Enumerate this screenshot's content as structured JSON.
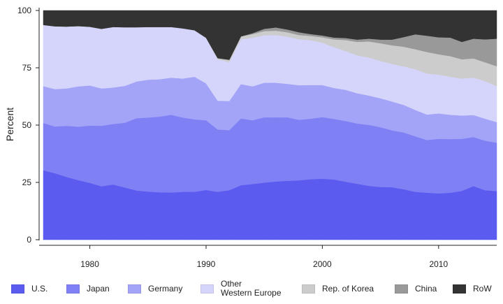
{
  "chart_data": {
    "type": "area",
    "stacked": true,
    "title": "",
    "xlabel": "",
    "ylabel": "Percent",
    "xlim": [
      1976,
      2015
    ],
    "ylim": [
      0,
      100
    ],
    "xticks": [
      "1980",
      "1990",
      "2000",
      "2010"
    ],
    "yticks": [
      "0",
      "25",
      "50",
      "75",
      "100"
    ],
    "grid": false,
    "legend_position": "bottom",
    "x": [
      1976,
      1977,
      1978,
      1979,
      1980,
      1981,
      1982,
      1983,
      1984,
      1985,
      1986,
      1987,
      1988,
      1989,
      1990,
      1991,
      1992,
      1993,
      1994,
      1995,
      1996,
      1997,
      1998,
      1999,
      2000,
      2001,
      2002,
      2003,
      2004,
      2005,
      2006,
      2007,
      2008,
      2009,
      2010,
      2011,
      2012,
      2013,
      2014,
      2015
    ],
    "series": [
      {
        "name": "U.S.",
        "color": "#5b5bf0",
        "values": [
          30.3,
          29.0,
          27.4,
          26.0,
          24.8,
          23.3,
          24.1,
          22.8,
          21.5,
          21.0,
          20.7,
          20.6,
          20.9,
          20.9,
          21.7,
          20.9,
          21.6,
          23.8,
          24.3,
          24.9,
          25.4,
          25.7,
          25.9,
          26.4,
          26.6,
          26.3,
          25.3,
          24.4,
          23.5,
          23.0,
          22.9,
          22.0,
          20.9,
          20.5,
          20.2,
          20.5,
          21.3,
          23.4,
          21.6,
          21.2
        ]
      },
      {
        "name": "Japan",
        "color": "#8080f5",
        "values": [
          20.6,
          20.4,
          22.3,
          23.3,
          25.0,
          26.4,
          26.4,
          28.2,
          31.5,
          32.3,
          33.0,
          33.9,
          32.4,
          31.6,
          30.4,
          27.2,
          26.2,
          29.1,
          27.8,
          28.5,
          28.0,
          27.7,
          26.4,
          26.4,
          26.9,
          26.4,
          26.5,
          26.3,
          26.6,
          26.1,
          24.8,
          24.8,
          24.2,
          23.0,
          23.8,
          23.4,
          22.7,
          21.4,
          21.6,
          21.1
        ]
      },
      {
        "name": "Germany",
        "color": "#a3a3f7",
        "values": [
          16.1,
          16.3,
          16.3,
          17.6,
          17.5,
          16.3,
          15.9,
          16.1,
          16.0,
          16.5,
          16.3,
          16.2,
          17.0,
          18.6,
          16.1,
          12.5,
          12.7,
          15.0,
          14.8,
          15.1,
          15.1,
          14.6,
          15.1,
          14.7,
          14.0,
          13.5,
          13.6,
          13.2,
          12.8,
          12.6,
          12.6,
          12.0,
          11.5,
          11.1,
          11.1,
          10.6,
          10.2,
          9.6,
          9.6,
          9.0
        ]
      },
      {
        "name": "Other\nWestern Europe",
        "color": "#d5d5fb",
        "values": [
          26.7,
          27.4,
          27.0,
          26.3,
          25.6,
          26.0,
          26.4,
          25.6,
          23.7,
          23.0,
          22.8,
          22.1,
          21.9,
          20.3,
          19.8,
          18.1,
          17.0,
          19.6,
          21.2,
          20.7,
          20.8,
          20.6,
          20.1,
          19.5,
          18.5,
          17.8,
          16.9,
          16.5,
          16.6,
          16.3,
          16.4,
          16.8,
          17.8,
          17.9,
          16.9,
          16.6,
          16.1,
          16.3,
          16.4,
          15.7
        ]
      },
      {
        "name": "Rep. of Korea",
        "color": "#cccccc",
        "values": [
          0,
          0,
          0,
          0,
          0,
          0,
          0,
          0,
          0,
          0,
          0,
          0,
          0,
          0,
          0.1,
          0.5,
          1.0,
          1.2,
          1.6,
          1.8,
          1.9,
          1.9,
          1.8,
          1.9,
          2.3,
          3.4,
          4.8,
          5.9,
          7.0,
          7.7,
          8.1,
          8.6,
          8.7,
          9.4,
          8.9,
          9.0,
          8.4,
          8.4,
          8.2,
          8.7
        ]
      },
      {
        "name": "China",
        "color": "#999999",
        "values": [
          0,
          0,
          0,
          0,
          0,
          0,
          0,
          0,
          0,
          0,
          0,
          0,
          0,
          0,
          0,
          0,
          0,
          0,
          0.4,
          1.0,
          1.4,
          1.2,
          1.2,
          0.8,
          0.8,
          0.8,
          0.9,
          1.0,
          1.2,
          1.6,
          2.5,
          4.2,
          6.5,
          7.1,
          7.4,
          8.1,
          7.6,
          8.6,
          10.0,
          12.0
        ]
      },
      {
        "name": "RoW",
        "color": "#333333",
        "values": [
          6.3,
          6.9,
          7.0,
          6.8,
          7.1,
          8.0,
          7.2,
          7.3,
          7.3,
          7.2,
          7.2,
          7.2,
          7.8,
          8.6,
          11.9,
          20.8,
          21.5,
          11.3,
          9.9,
          8.0,
          7.4,
          8.3,
          9.5,
          10.3,
          10.9,
          11.8,
          12.0,
          12.7,
          12.3,
          12.7,
          12.7,
          11.6,
          10.4,
          11.0,
          11.7,
          11.8,
          13.7,
          12.3,
          12.6,
          12.3
        ]
      }
    ]
  }
}
